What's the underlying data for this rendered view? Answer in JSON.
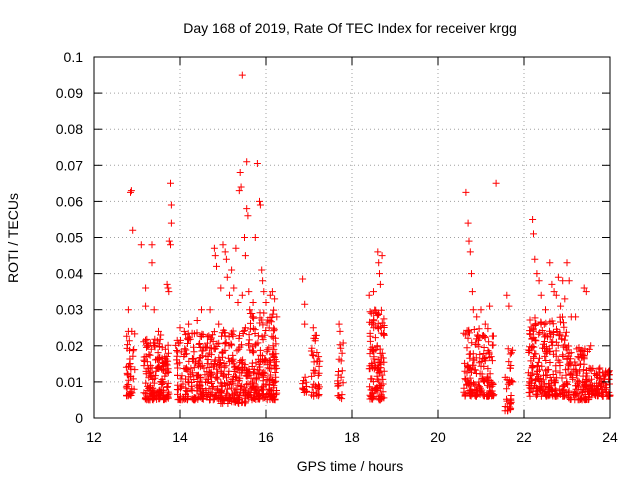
{
  "chart_data": {
    "type": "scatter",
    "title": "Day 168 of 2019, Rate Of TEC Index for receiver krgg",
    "xlabel": "GPS time / hours",
    "ylabel": "ROTI / TECUs",
    "xlim": [
      12,
      24
    ],
    "ylim": [
      0,
      0.1
    ],
    "xticks": [
      "12",
      "14",
      "16",
      "18",
      "20",
      "22",
      "24"
    ],
    "yticks": [
      "0",
      "0.01",
      "0.02",
      "0.03",
      "0.04",
      "0.05",
      "0.06",
      "0.07",
      "0.08",
      "0.09",
      "0.1"
    ],
    "grid": true,
    "marker": "+",
    "color": "#ff0000",
    "clusters": [
      {
        "x_range": [
          12.75,
          12.95
        ],
        "y_range": [
          0.006,
          0.024
        ],
        "count": 40
      },
      {
        "x_range": [
          13.15,
          13.75
        ],
        "y_range": [
          0.005,
          0.022
        ],
        "count": 160
      },
      {
        "x_range": [
          13.9,
          14.95
        ],
        "y_range": [
          0.005,
          0.024
        ],
        "count": 240
      },
      {
        "x_range": [
          14.95,
          15.6
        ],
        "y_range": [
          0.004,
          0.025
        ],
        "count": 170
      },
      {
        "x_range": [
          15.6,
          16.25
        ],
        "y_range": [
          0.005,
          0.03
        ],
        "count": 200
      },
      {
        "x_range": [
          16.85,
          16.95
        ],
        "y_range": [
          0.007,
          0.012
        ],
        "count": 14
      },
      {
        "x_range": [
          17.05,
          17.25
        ],
        "y_range": [
          0.006,
          0.024
        ],
        "count": 35
      },
      {
        "x_range": [
          17.65,
          17.8
        ],
        "y_range": [
          0.005,
          0.022
        ],
        "count": 20
      },
      {
        "x_range": [
          18.4,
          18.75
        ],
        "y_range": [
          0.005,
          0.03
        ],
        "count": 120
      },
      {
        "x_range": [
          20.6,
          21.3
        ],
        "y_range": [
          0.006,
          0.025
        ],
        "count": 160
      },
      {
        "x_range": [
          21.55,
          21.75
        ],
        "y_range": [
          0.002,
          0.02
        ],
        "count": 35
      },
      {
        "x_range": [
          22.1,
          23.0
        ],
        "y_range": [
          0.006,
          0.028
        ],
        "count": 230
      },
      {
        "x_range": [
          23.0,
          23.55
        ],
        "y_range": [
          0.005,
          0.02
        ],
        "count": 120
      },
      {
        "x_range": [
          23.55,
          24.0
        ],
        "y_range": [
          0.006,
          0.014
        ],
        "count": 80
      }
    ],
    "points": [
      [
        12.8,
        0.03
      ],
      [
        12.8,
        0.024
      ],
      [
        12.85,
        0.0625
      ],
      [
        12.87,
        0.063
      ],
      [
        12.9,
        0.052
      ],
      [
        12.88,
        0.024
      ],
      [
        13.1,
        0.048
      ],
      [
        13.2,
        0.031
      ],
      [
        13.2,
        0.036
      ],
      [
        13.35,
        0.048
      ],
      [
        13.35,
        0.043
      ],
      [
        13.4,
        0.03
      ],
      [
        13.5,
        0.024
      ],
      [
        13.55,
        0.023
      ],
      [
        13.7,
        0.037
      ],
      [
        13.72,
        0.036
      ],
      [
        13.74,
        0.035
      ],
      [
        13.75,
        0.049
      ],
      [
        13.78,
        0.048
      ],
      [
        13.78,
        0.065
      ],
      [
        13.8,
        0.059
      ],
      [
        13.8,
        0.054
      ],
      [
        14.0,
        0.025
      ],
      [
        14.1,
        0.024
      ],
      [
        14.2,
        0.026
      ],
      [
        14.4,
        0.027
      ],
      [
        14.5,
        0.03
      ],
      [
        14.7,
        0.03
      ],
      [
        14.8,
        0.047
      ],
      [
        14.82,
        0.045
      ],
      [
        14.85,
        0.042
      ],
      [
        14.9,
        0.026
      ],
      [
        14.95,
        0.036
      ],
      [
        15.0,
        0.048
      ],
      [
        15.05,
        0.046
      ],
      [
        15.08,
        0.044
      ],
      [
        15.1,
        0.039
      ],
      [
        15.15,
        0.034
      ],
      [
        15.2,
        0.041
      ],
      [
        15.25,
        0.036
      ],
      [
        15.3,
        0.047
      ],
      [
        15.35,
        0.032
      ],
      [
        15.38,
        0.063
      ],
      [
        15.4,
        0.068
      ],
      [
        15.42,
        0.064
      ],
      [
        15.45,
        0.095
      ],
      [
        15.45,
        0.034
      ],
      [
        15.5,
        0.05
      ],
      [
        15.52,
        0.045
      ],
      [
        15.55,
        0.058
      ],
      [
        15.55,
        0.071
      ],
      [
        15.58,
        0.056
      ],
      [
        15.6,
        0.035
      ],
      [
        15.62,
        0.03
      ],
      [
        15.7,
        0.032
      ],
      [
        15.75,
        0.05
      ],
      [
        15.8,
        0.0705
      ],
      [
        15.85,
        0.06
      ],
      [
        15.87,
        0.059
      ],
      [
        15.9,
        0.041
      ],
      [
        15.92,
        0.038
      ],
      [
        15.95,
        0.035
      ],
      [
        16.0,
        0.032
      ],
      [
        16.1,
        0.034
      ],
      [
        16.15,
        0.035
      ],
      [
        16.2,
        0.033
      ],
      [
        16.25,
        0.028
      ],
      [
        16.85,
        0.0385
      ],
      [
        16.9,
        0.0315
      ],
      [
        16.9,
        0.026
      ],
      [
        17.1,
        0.025
      ],
      [
        17.15,
        0.022
      ],
      [
        17.7,
        0.026
      ],
      [
        17.72,
        0.024
      ],
      [
        18.4,
        0.034
      ],
      [
        18.45,
        0.029
      ],
      [
        18.5,
        0.035
      ],
      [
        18.6,
        0.046
      ],
      [
        18.62,
        0.043
      ],
      [
        18.64,
        0.04
      ],
      [
        18.66,
        0.037
      ],
      [
        18.7,
        0.045
      ],
      [
        20.65,
        0.0625
      ],
      [
        20.7,
        0.054
      ],
      [
        20.72,
        0.049
      ],
      [
        20.75,
        0.046
      ],
      [
        20.78,
        0.04
      ],
      [
        20.8,
        0.035
      ],
      [
        20.82,
        0.03
      ],
      [
        20.9,
        0.028
      ],
      [
        21.0,
        0.03
      ],
      [
        21.1,
        0.026
      ],
      [
        21.2,
        0.031
      ],
      [
        21.35,
        0.065
      ],
      [
        21.6,
        0.034
      ],
      [
        21.65,
        0.031
      ],
      [
        22.2,
        0.055
      ],
      [
        22.22,
        0.051
      ],
      [
        22.25,
        0.044
      ],
      [
        22.3,
        0.04
      ],
      [
        22.35,
        0.038
      ],
      [
        22.4,
        0.034
      ],
      [
        22.5,
        0.03
      ],
      [
        22.6,
        0.043
      ],
      [
        22.65,
        0.037
      ],
      [
        22.7,
        0.035
      ],
      [
        22.75,
        0.034
      ],
      [
        22.8,
        0.039
      ],
      [
        22.85,
        0.031
      ],
      [
        22.9,
        0.038
      ],
      [
        22.95,
        0.033
      ],
      [
        23.0,
        0.043
      ],
      [
        23.05,
        0.038
      ],
      [
        23.1,
        0.028
      ],
      [
        23.2,
        0.028
      ],
      [
        23.4,
        0.036
      ],
      [
        23.45,
        0.035
      ],
      [
        23.55,
        0.02
      ],
      [
        23.7,
        0.012
      ],
      [
        23.9,
        0.013
      ]
    ]
  }
}
